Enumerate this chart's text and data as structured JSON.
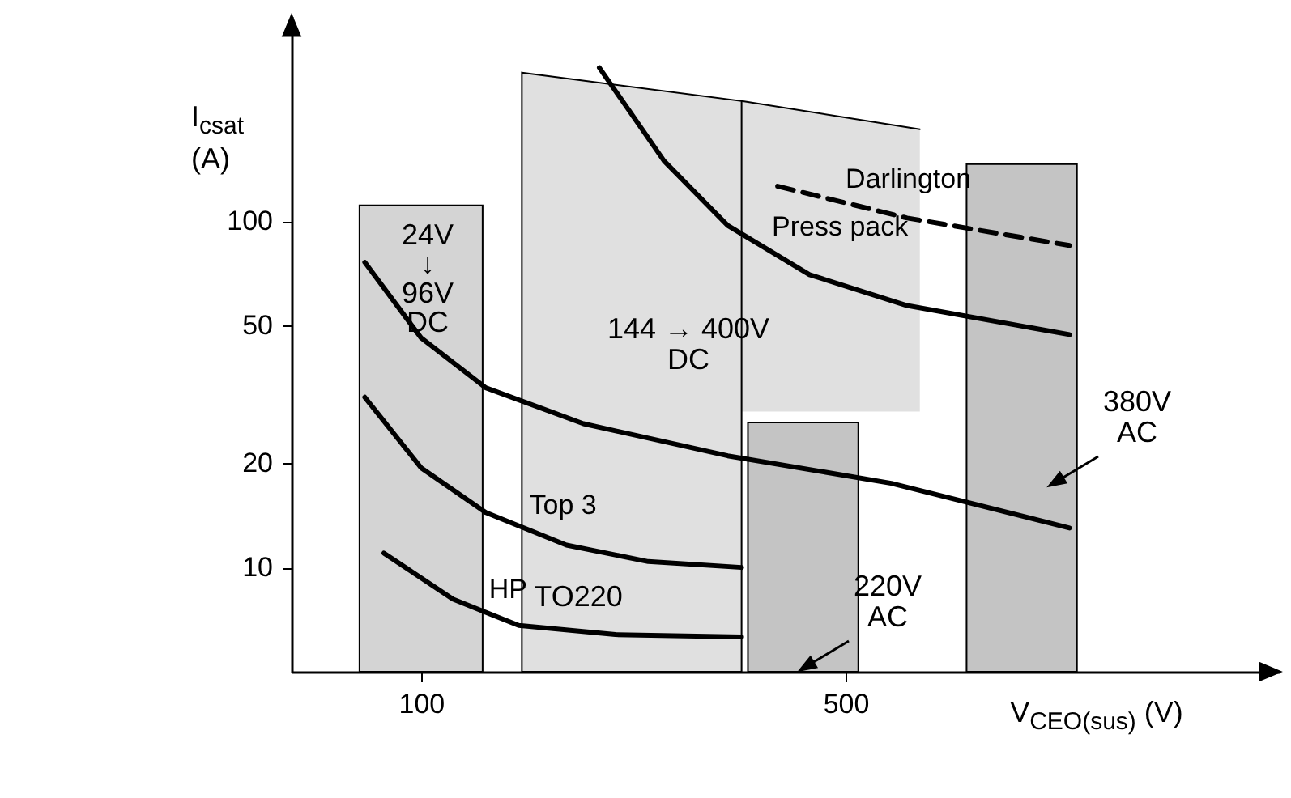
{
  "chart_data": {
    "type": "line",
    "xlabel": "V$_{CEO(sus)}$ (V)",
    "ylabel": "I$_{csat}$ (A)",
    "log": "y",
    "xlim": [
      -22,
      909
    ],
    "ylim": [
      5,
      390
    ],
    "xticks": [
      100,
      500
    ],
    "yticks": [
      10,
      20,
      50,
      100
    ],
    "series": [
      {
        "type": "area",
        "color": "#d4d4d4",
        "x": [
          42,
          158
        ],
        "values": [
          111,
          111
        ]
      },
      {
        "type": "area",
        "color": "#e0e0e0",
        "x": [
          195,
          402
        ],
        "values": [
          268,
          222
        ]
      },
      {
        "type": "line",
        "color": "#000000",
        "x": [
          402,
          570
        ],
        "values": [
          222,
          184
        ],
        "lower": [
          28.2,
          28.2
        ],
        "upper": [
          222,
          184
        ]
      },
      {
        "type": "area",
        "color": "#c4c4c4",
        "x": [
          408,
          512
        ],
        "values": [
          26.2,
          26.2
        ]
      },
      {
        "type": "area",
        "color": "#c4c4c4",
        "x": [
          614,
          718
        ],
        "values": [
          146,
          146
        ]
      },
      {
        "name": "HP",
        "color": "#000000",
        "x": [
          65,
          130,
          192,
          283,
          402
        ],
        "values": [
          11.0,
          8.1,
          6.8,
          6.4,
          6.3
        ]
      },
      {
        "name": "Top 3",
        "color": "#000000",
        "x": [
          47,
          100,
          161,
          237,
          314,
          402
        ],
        "values": [
          31,
          19.4,
          14.4,
          11.6,
          10.4,
          10
        ]
      },
      {
        "color": "#000000",
        "x": [
          47,
          100,
          161,
          253,
          389,
          543,
          711
        ],
        "values": [
          76,
          46,
          33,
          26,
          21,
          17.5,
          13
        ]
      },
      {
        "name": "Press pack",
        "color": "#000000",
        "x": [
          268,
          329,
          389,
          466,
          558,
          711
        ],
        "values": [
          277,
          149,
          97,
          70,
          57,
          47
        ]
      },
      {
        "name": "Darlington",
        "color": "#000000",
        "line_style": "dashed",
        "x": [
          436,
          558,
          711
        ],
        "values": [
          126,
          102,
          85
        ]
      }
    ],
    "annotations": [
      "TO220",
      "24V\n↓\n96V\nDC",
      "144 → 400V\nDC",
      "220V\nAC",
      "380V\nAC"
    ]
  }
}
